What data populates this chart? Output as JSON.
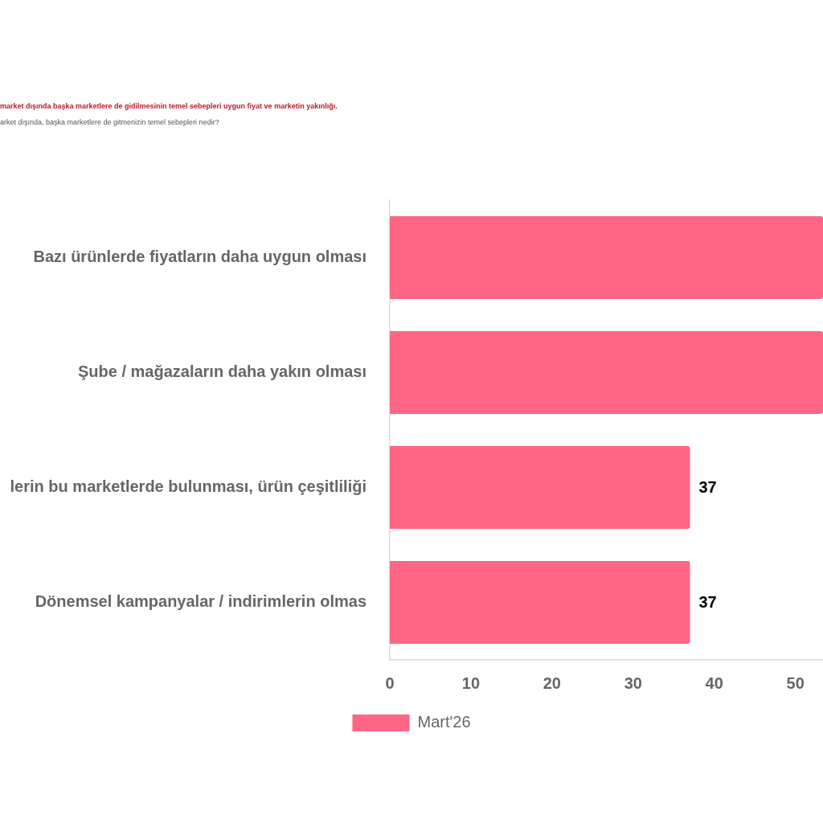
{
  "chart_data": {
    "type": "bar",
    "orientation": "horizontal",
    "title": "market dışında başka marketlere de gidilmesinin temel sebepleri uygun fiyat ve marketin yakınlığı.",
    "subtitle": "arket dışında, başka marketlere de gitmenizin temel sebepleri nedir?",
    "categories": [
      "Bazı ürünlerde fiyatların daha uygun olması",
      "Şube / mağazaların daha yakın olması",
      "lerin bu marketlerde bulunması, ürün çeşitliliği",
      "Dönemsel kampanyalar / indirimlerin olmas"
    ],
    "series": [
      {
        "name": "Mart'26",
        "color": "#ff6584",
        "values": [
          53.4,
          53.4,
          37,
          37
        ],
        "value_labels": [
          null,
          null,
          "37",
          "37"
        ]
      }
    ],
    "xlim": [
      0,
      53.4
    ],
    "xticks": [
      0,
      10,
      20,
      30,
      40,
      50
    ],
    "legend": "bottom"
  }
}
